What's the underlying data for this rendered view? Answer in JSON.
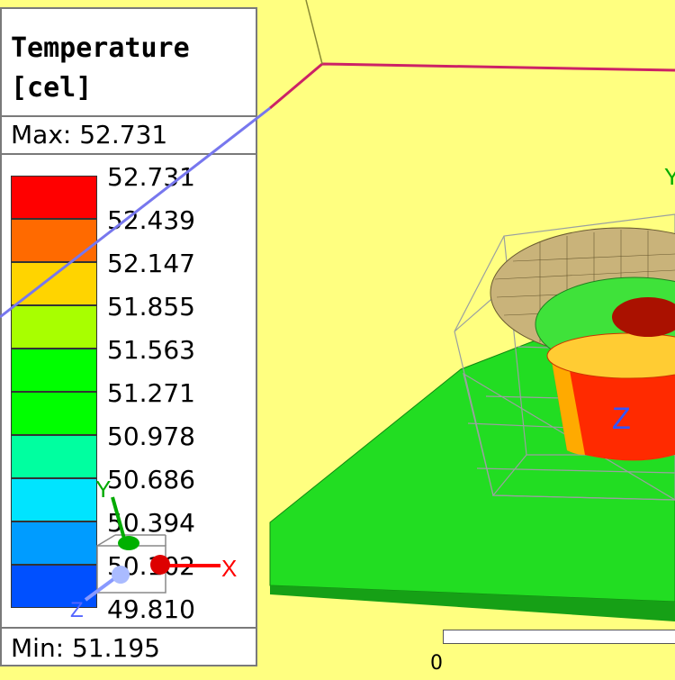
{
  "legend": {
    "title_line1": "Temperature",
    "title_line2": "[cel]",
    "max_label": "Max: 52.731",
    "min_label": "Min: 51.195",
    "ticks": [
      "52.731",
      "52.439",
      "52.147",
      "51.855",
      "51.563",
      "51.271",
      "50.978",
      "50.686",
      "50.394",
      "50.102",
      "49.810"
    ],
    "colors": [
      "#ff0000",
      "#ff6a00",
      "#ffd400",
      "#a8ff00",
      "#00ff00",
      "#00ff00",
      "#00ffa0",
      "#00e4ff",
      "#009cff",
      "#0050ff",
      "#0000ff"
    ]
  },
  "axis_triad": {
    "x_label": "X",
    "y_label": "Y",
    "z_label": "Z"
  },
  "scene_axis_labels": {
    "y_label": "Y",
    "z_label": "Z"
  },
  "scale_bar": {
    "zero_label": "0"
  },
  "colors": {
    "background": "#ffff80"
  }
}
